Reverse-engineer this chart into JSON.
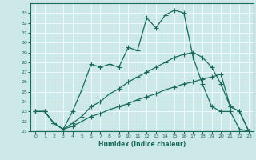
{
  "xlabel": "Humidex (Indice chaleur)",
  "bg_color": "#cce8e8",
  "line_color": "#1a6b5a",
  "xlim": [
    -0.5,
    23.5
  ],
  "ylim": [
    21,
    34
  ],
  "yticks": [
    21,
    22,
    23,
    24,
    25,
    26,
    27,
    28,
    29,
    30,
    31,
    32,
    33
  ],
  "xticks": [
    0,
    1,
    2,
    3,
    4,
    5,
    6,
    7,
    8,
    9,
    10,
    11,
    12,
    13,
    14,
    15,
    16,
    17,
    18,
    19,
    20,
    21,
    22,
    23
  ],
  "curve1_x": [
    0,
    1,
    2,
    3,
    4,
    5,
    6,
    7,
    8,
    9,
    10,
    11,
    12,
    13,
    14,
    15,
    16,
    17,
    18,
    19,
    20,
    21,
    22,
    23
  ],
  "curve1_y": [
    23,
    23,
    21.8,
    21.2,
    23,
    25.2,
    27.8,
    27.5,
    27.8,
    27.5,
    29.5,
    29.2,
    32.5,
    31.5,
    32.8,
    33.3,
    33.0,
    28.5,
    25.8,
    23.5,
    23.0,
    23.0,
    21.2,
    21.0
  ],
  "curve2_x": [
    0,
    1,
    2,
    3,
    4,
    5,
    6,
    7,
    8,
    9,
    10,
    11,
    12,
    13,
    14,
    15,
    16,
    17,
    18,
    19,
    20,
    21,
    22,
    23
  ],
  "curve2_y": [
    21.0,
    21.0,
    21.0,
    21.0,
    21.0,
    21.0,
    21.0,
    21.0,
    21.0,
    21.0,
    21.0,
    21.0,
    21.0,
    21.0,
    21.0,
    21.0,
    21.0,
    21.0,
    21.0,
    21.0,
    21.0,
    21.0,
    21.0,
    21.0
  ],
  "curve3_x": [
    0,
    1,
    2,
    3,
    4,
    5,
    6,
    7,
    8,
    9,
    10,
    11,
    12,
    13,
    14,
    15,
    16,
    17,
    18,
    19,
    20,
    21,
    22,
    23
  ],
  "curve3_y": [
    23.0,
    23.0,
    21.8,
    21.2,
    21.5,
    22.0,
    22.5,
    22.8,
    23.2,
    23.5,
    23.8,
    24.2,
    24.5,
    24.8,
    25.2,
    25.5,
    25.8,
    26.0,
    26.3,
    26.5,
    26.8,
    23.5,
    23.0,
    21.0
  ],
  "curve4_x": [
    0,
    1,
    2,
    3,
    4,
    5,
    6,
    7,
    8,
    9,
    10,
    11,
    12,
    13,
    14,
    15,
    16,
    17,
    18,
    19,
    20,
    21,
    22,
    23
  ],
  "curve4_y": [
    23.0,
    23.0,
    21.8,
    21.2,
    21.8,
    22.5,
    23.5,
    24.0,
    24.8,
    25.3,
    26.0,
    26.5,
    27.0,
    27.5,
    28.0,
    28.5,
    28.8,
    29.0,
    28.5,
    27.5,
    25.8,
    23.5,
    23.0,
    21.0
  ]
}
